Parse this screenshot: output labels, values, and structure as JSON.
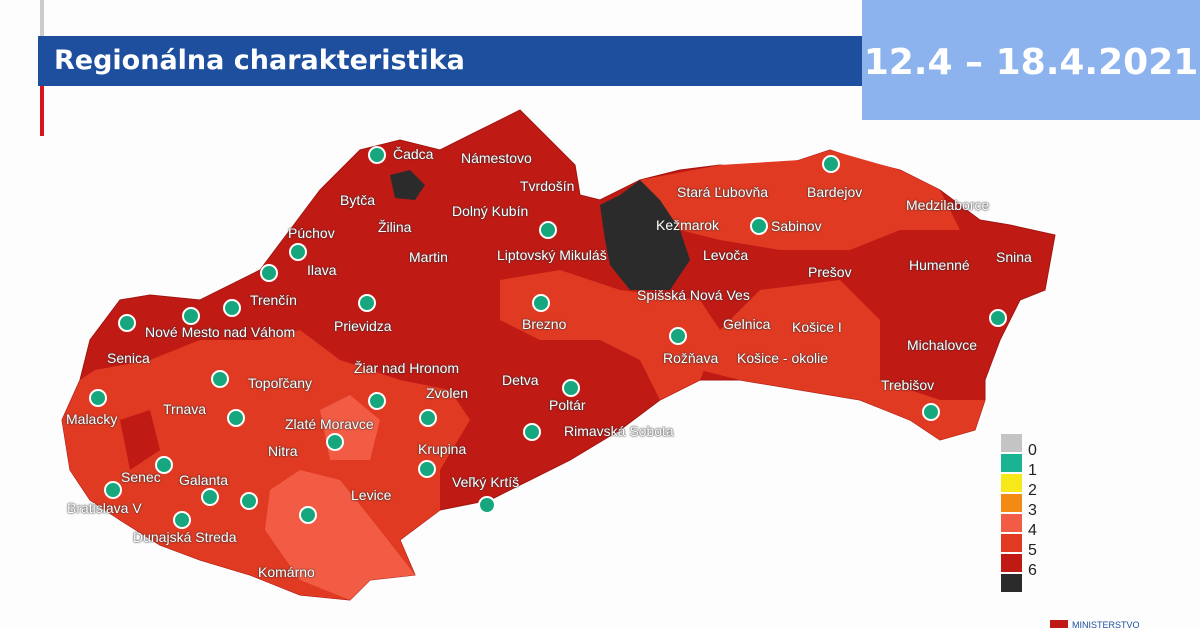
{
  "header": {
    "title": "Regionálna charakteristika",
    "date_range": "12.4 – 18.4.2021"
  },
  "map": {
    "colors": {
      "level_5": "#e03a22",
      "level_6": "#c01a15",
      "level_4": "#f25c44",
      "black": "#2b2b2b",
      "dot": "#17a77e"
    },
    "labels": [
      "Čadca",
      "Námestovo",
      "Tvrdošín",
      "Bytča",
      "Dolný Kubín",
      "Žilina",
      "Púchov",
      "Ilava",
      "Martin",
      "Liptovský Mikuláš",
      "Trenčín",
      "Nové Mesto nad Váhom",
      "Prievidza",
      "Brezno",
      "Senica",
      "Žiar nad Hronom",
      "Topoľčany",
      "Zvolen",
      "Detva",
      "Poltár",
      "Malacky",
      "Trnava",
      "Zlaté Moravce",
      "Krupina",
      "Rimavská Sobota",
      "Nitra",
      "Levice",
      "Senec",
      "Galanta",
      "Veľký Krtíš",
      "Bratislava V",
      "Dunajská Streda",
      "Komárno",
      "Stará Ľubovňa",
      "Bardejov",
      "Kežmarok",
      "Sabinov",
      "Medzilaborce",
      "Levoča",
      "Prešov",
      "Humenné",
      "Snina",
      "Spišská Nová Ves",
      "Gelnica",
      "Košice I",
      "Rožňava",
      "Košice - okolie",
      "Michalovce",
      "Trebišov"
    ]
  },
  "legend": {
    "items": [
      {
        "label": "0",
        "color": "#c4c4c4"
      },
      {
        "label": "1",
        "color": "#1ab394"
      },
      {
        "label": "2",
        "color": "#f7e81a"
      },
      {
        "label": "3",
        "color": "#f28a14"
      },
      {
        "label": "4",
        "color": "#f25c44"
      },
      {
        "label": "5",
        "color": "#e03a22"
      },
      {
        "label": "6",
        "color": "#c01a15"
      },
      {
        "label": "",
        "color": "#2b2b2b"
      }
    ]
  },
  "logo": {
    "text": "MINISTERSTVO"
  }
}
